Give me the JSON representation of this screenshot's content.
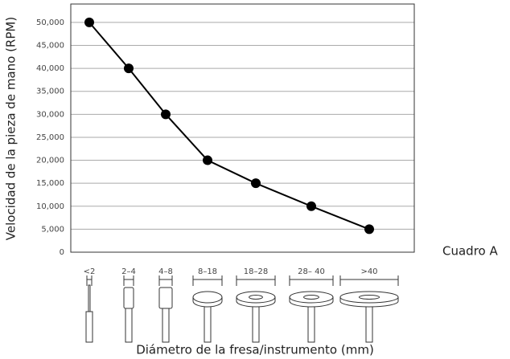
{
  "chart_data": {
    "type": "line",
    "y_label": "Velocidad de la pieza de mano (RPM)",
    "x_label": "Diámetro de la fresa/instrumento (mm)",
    "annotation": "Cuadro A",
    "categories": [
      "<2",
      "2–4",
      "4–8",
      "8–18",
      "18–28",
      "28– 40",
      ">40"
    ],
    "series": [
      {
        "name": "RPM",
        "color": "#000000",
        "values": [
          50000,
          40000,
          30000,
          20000,
          15000,
          10000,
          5000
        ]
      }
    ],
    "ylim": [
      0,
      54000
    ],
    "yticks": [
      0,
      {
        "value": 5000,
        "label": "5,000"
      },
      {
        "value": 10000,
        "label": "10,000"
      },
      {
        "value": 15000,
        "label": "15,000"
      },
      {
        "value": 20000,
        "label": "20,000"
      },
      {
        "value": 25000,
        "label": "25,000"
      },
      {
        "value": 30000,
        "label": "30,000"
      },
      {
        "value": 35000,
        "label": "35,000"
      },
      {
        "value": 40000,
        "label": "40,000"
      },
      {
        "value": 45000,
        "label": "45,000"
      },
      {
        "value": 50000,
        "label": "50,000"
      }
    ],
    "grid": true
  }
}
